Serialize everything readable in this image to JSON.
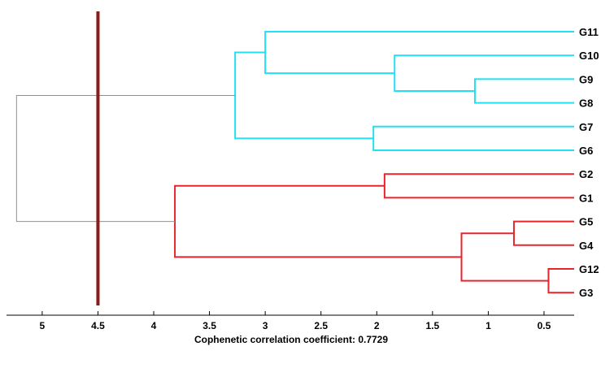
{
  "chart_data": {
    "type": "dendrogram",
    "orientation": "horizontal",
    "xlabel": "Cophenetic correlation coefficient: 0.7729",
    "xlim": [
      5.32,
      0.23
    ],
    "x_reversed": true,
    "xticks": [
      5,
      4.5,
      4,
      3.5,
      3,
      2.5,
      2,
      1.5,
      1,
      0.5
    ],
    "xtick_labels": [
      "5",
      "4.5",
      "4",
      "3.5",
      "3",
      "2.5",
      "2",
      "1.5",
      "1",
      "0.5"
    ],
    "leaves": [
      "G11",
      "G10",
      "G9",
      "G8",
      "G7",
      "G6",
      "G2",
      "G1",
      "G5",
      "G4",
      "G12",
      "G3"
    ],
    "cutoff": 4.5,
    "cutoff_color": "#8b1a1a",
    "colors": {
      "cyan": "#22e0f4",
      "red": "#e8242c",
      "root": "#909090"
    },
    "merges": [
      {
        "a": "G9",
        "b": "G8",
        "height": 1.12,
        "color": "cyan"
      },
      {
        "a": "G10",
        "b": "G9+G8",
        "height": 1.84,
        "color": "cyan"
      },
      {
        "a": "G11",
        "b": "G10+G9+G8",
        "height": 3.0,
        "color": "cyan"
      },
      {
        "a": "G7",
        "b": "G6",
        "height": 2.03,
        "color": "cyan"
      },
      {
        "a": "G11+G10+G9+G8",
        "b": "G7+G6",
        "height": 3.27,
        "color": "cyan"
      },
      {
        "a": "G2",
        "b": "G1",
        "height": 1.93,
        "color": "red"
      },
      {
        "a": "G5",
        "b": "G4",
        "height": 0.77,
        "color": "red"
      },
      {
        "a": "G12",
        "b": "G3",
        "height": 0.46,
        "color": "red"
      },
      {
        "a": "G5+G4",
        "b": "G12+G3",
        "height": 1.24,
        "color": "red"
      },
      {
        "a": "G2+G1",
        "b": "G5+G4+G12+G3",
        "height": 3.81,
        "color": "red"
      },
      {
        "a": "cyan_cluster",
        "b": "red_cluster",
        "height": 5.23,
        "color": "root"
      }
    ]
  }
}
